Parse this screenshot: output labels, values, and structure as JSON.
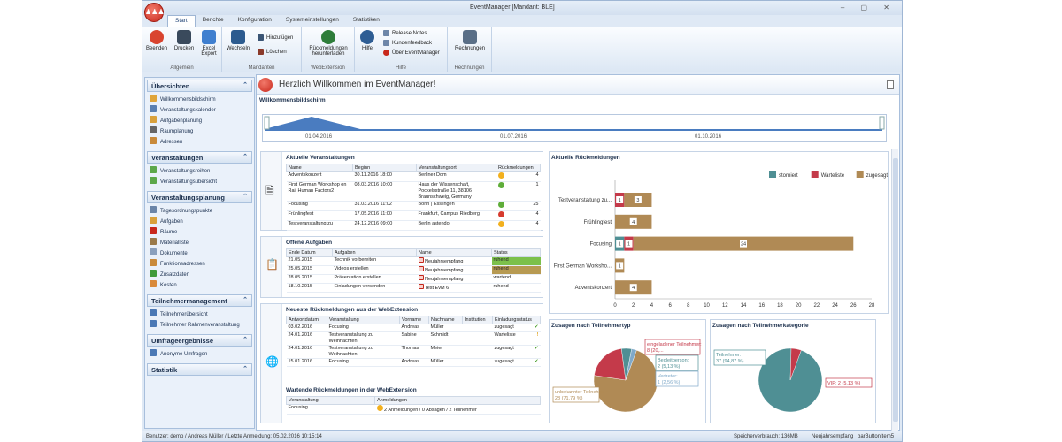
{
  "window": {
    "title": "EventManager [Mandant: BLE]",
    "logo_glyph": "♟♟♟",
    "controls": [
      "–",
      "▢",
      "✕"
    ]
  },
  "tabs": [
    "Start",
    "Berichte",
    "Konfiguration",
    "Systemeinstellungen",
    "Statistiken"
  ],
  "ribbon": {
    "allgemein": {
      "label": "Allgemein",
      "beenden": "Beenden",
      "drucken": "Drucken",
      "excel": "Excel Export"
    },
    "mandanten": {
      "label": "Mandanten",
      "wechseln": "Wechseln",
      "hinzufuegen": "Hinzufügen",
      "loeschen": "Löschen"
    },
    "webextension": {
      "label": "WebExtension",
      "rueck": "Rückmeldungen herunterladen"
    },
    "hilfe": {
      "label": "Hilfe",
      "hilfe": "Hilfe",
      "release": "Release Notes",
      "kunden": "Kundenfeedback",
      "ueber": "Über EventManager"
    },
    "rechnungen": {
      "label": "Rechnungen",
      "rechnungen": "Rechnungen"
    }
  },
  "sidebar": {
    "sections": [
      {
        "title": "Übersichten",
        "items": [
          "Willkommensbildschirm",
          "Veranstaltungskalender",
          "Aufgabenplanung",
          "Raumplanung",
          "Adressen"
        ]
      },
      {
        "title": "Veranstaltungen",
        "items": [
          "Veranstaltungsreihen",
          "Veranstaltungsübersicht"
        ]
      },
      {
        "title": "Veranstaltungsplanung",
        "items": [
          "Tagesordnungspunkte",
          "Aufgaben",
          "Räume",
          "Materialliste",
          "Dokumente",
          "Funktionsadressen",
          "Zusatzdaten",
          "Kosten"
        ]
      },
      {
        "title": "Teilnehmermanagement",
        "items": [
          "Teilnehmerübersicht",
          "Teilnehmer Rahmenveranstaltung"
        ]
      },
      {
        "title": "Umfrageergebnisse",
        "items": [
          "Anonyme Umfragen"
        ]
      },
      {
        "title": "Statistik",
        "items": []
      }
    ]
  },
  "main": {
    "welcome_title": "Herzlich Willkommen im EventManager!",
    "section_label": "Willkommensbildschirm",
    "timeline_labels": [
      "01.04.2016",
      "01.07.2016",
      "01.10.2016"
    ]
  },
  "events": {
    "title": "Aktuelle Veranstaltungen",
    "headers": [
      "Name",
      "Beginn",
      "Veranstaltungsort",
      "Rückmeldungen"
    ],
    "rows": [
      {
        "name": "Adventskonzert",
        "beginn": "30.11.2016 18:00",
        "ort": "Berliner Dom",
        "status": "warn",
        "count": "4"
      },
      {
        "name": "First German Workshop on Rail Human Factors2",
        "beginn": "08.03.2016 10:00",
        "ort": "Haus der Wissenschaft, Pockelsstraße 11, 38106 Braunschweig, Germany",
        "status": "ok",
        "count": "1"
      },
      {
        "name": "Focusing",
        "beginn": "31.03.2016 11:02",
        "ort": "Bonn | Esslingen",
        "status": "ok",
        "count": "25"
      },
      {
        "name": "Frühlingfest",
        "beginn": "17.05.2016 11:00",
        "ort": "Frankfurt, Campus Riedberg",
        "status": "err",
        "count": "4"
      },
      {
        "name": "Testveranstaltung zu",
        "beginn": "24.12.2016 09:00",
        "ort": "Berlin astendo",
        "status": "warn",
        "count": "4"
      }
    ]
  },
  "tasks": {
    "title": "Offene Aufgaben",
    "headers": [
      "Ende Datum",
      "Aufgaben",
      "Name",
      "Status"
    ],
    "rows": [
      {
        "datum": "21.05.2015",
        "aufgabe": "Technik vorbereiten",
        "name": "Neujahrsempfang",
        "status": "ruhend",
        "color": "#7cc04a"
      },
      {
        "datum": "25.05.2015",
        "aufgabe": "Videos erstellen",
        "name": "Neujahrsempfang",
        "status": "ruhend",
        "color": "#b79a52"
      },
      {
        "datum": "28.05.2015",
        "aufgabe": "Präsentation erstellen",
        "name": "Neujahrsempfang",
        "status": "wartend",
        "color": ""
      },
      {
        "datum": "18.10.2015",
        "aufgabe": "Einladungen versenden",
        "name": "Test EvM 6",
        "status": "ruhend",
        "color": ""
      }
    ]
  },
  "web": {
    "title": "Neueste Rückmeldungen aus der WebExtension",
    "headers": [
      "Antwortdatum",
      "Veranstaltung",
      "Vorname",
      "Nachname",
      "Institution",
      "Einladungsstatus"
    ],
    "rows": [
      {
        "datum": "03.02.2016",
        "va": "Focusing",
        "vn": "Andreas",
        "nn": "Müller",
        "inst": "",
        "status": "zugesagt",
        "mark": "✔",
        "mc": "#4aa02c"
      },
      {
        "datum": "24.01.2016",
        "va": "Testveranstaltung zu Weihnachten",
        "vn": "Sabine",
        "nn": "Schmidt",
        "inst": "",
        "status": "Warteliste",
        "mark": "!",
        "mc": "#e0a21a"
      },
      {
        "datum": "24.01.2016",
        "va": "Testveranstaltung zu Weihnachten",
        "vn": "Thomas",
        "nn": "Meier",
        "inst": "",
        "status": "zugesagt",
        "mark": "✔",
        "mc": "#4aa02c"
      },
      {
        "datum": "15.01.2016",
        "va": "Focusing",
        "vn": "Andreas",
        "nn": "Müller",
        "inst": "",
        "status": "zugesagt",
        "mark": "✔",
        "mc": "#4aa02c"
      }
    ],
    "waiting_title": "Wartende Rückmeldungen in der WebExtension",
    "waiting_headers": [
      "Veranstaltung",
      "Anmeldungen"
    ],
    "waiting_rows": [
      {
        "va": "Focusing",
        "anm": "2 Anmeldungen / 0 Absagen / 2 Teilnehmer"
      }
    ]
  },
  "chart_data": [
    {
      "type": "bar",
      "orientation": "horizontal",
      "stacked": true,
      "title": "Aktuelle Rückmeldungen",
      "categories": [
        "Testveranstaltung zu...",
        "Frühlingfest",
        "Focusing",
        "First German Worksho...",
        "Adventskonzert"
      ],
      "series": [
        {
          "name": "storniert",
          "color": "#4f8f94",
          "values": [
            0,
            0,
            1,
            0,
            0
          ]
        },
        {
          "name": "Warteliste",
          "color": "#c43a4a",
          "values": [
            1,
            0,
            1,
            0,
            0
          ]
        },
        {
          "name": "zugesagt",
          "color": "#b08a55",
          "values": [
            3,
            4,
            24,
            1,
            4
          ]
        }
      ],
      "xticks": [
        "0",
        "2",
        "4",
        "6",
        "8",
        "10",
        "12",
        "14",
        "16",
        "18",
        "20",
        "22",
        "24",
        "26",
        "28"
      ],
      "xlim": [
        0,
        28
      ],
      "legend": "top-right"
    },
    {
      "type": "pie",
      "title": "Zusagen nach Teilnehmertyp",
      "slices": [
        {
          "label": "unbekannter Teilnehmer: 28 (71,79 %)",
          "value": 28,
          "color": "#b08a55"
        },
        {
          "label": "eingeladener Teilnehmer: 8 (20,...",
          "value": 8,
          "color": "#c43a4a"
        },
        {
          "label": "Begleitperson: 2 (5,13 %)",
          "value": 2,
          "color": "#4f8f94"
        },
        {
          "label": "Vertreter: 1 (2,56 %)",
          "value": 1,
          "color": "#7fa9c9"
        }
      ]
    },
    {
      "type": "pie",
      "title": "Zusagen nach Teilnehmerkategorie",
      "slices": [
        {
          "label": "Teilnehmer: 37 (94,87 %)",
          "value": 37,
          "color": "#4f8f94"
        },
        {
          "label": "VIP: 2 (5,13 %)",
          "value": 2,
          "color": "#c43a4a"
        }
      ]
    }
  ],
  "status": {
    "left": "Benutzer: demo / Andreas Müller / Letzte Anmeldung: 05.02.2016 10:15:14",
    "mem": "Speicherverbrauch: 136MB",
    "event": "Neujahrsempfang",
    "item": "barButtonItem5"
  }
}
